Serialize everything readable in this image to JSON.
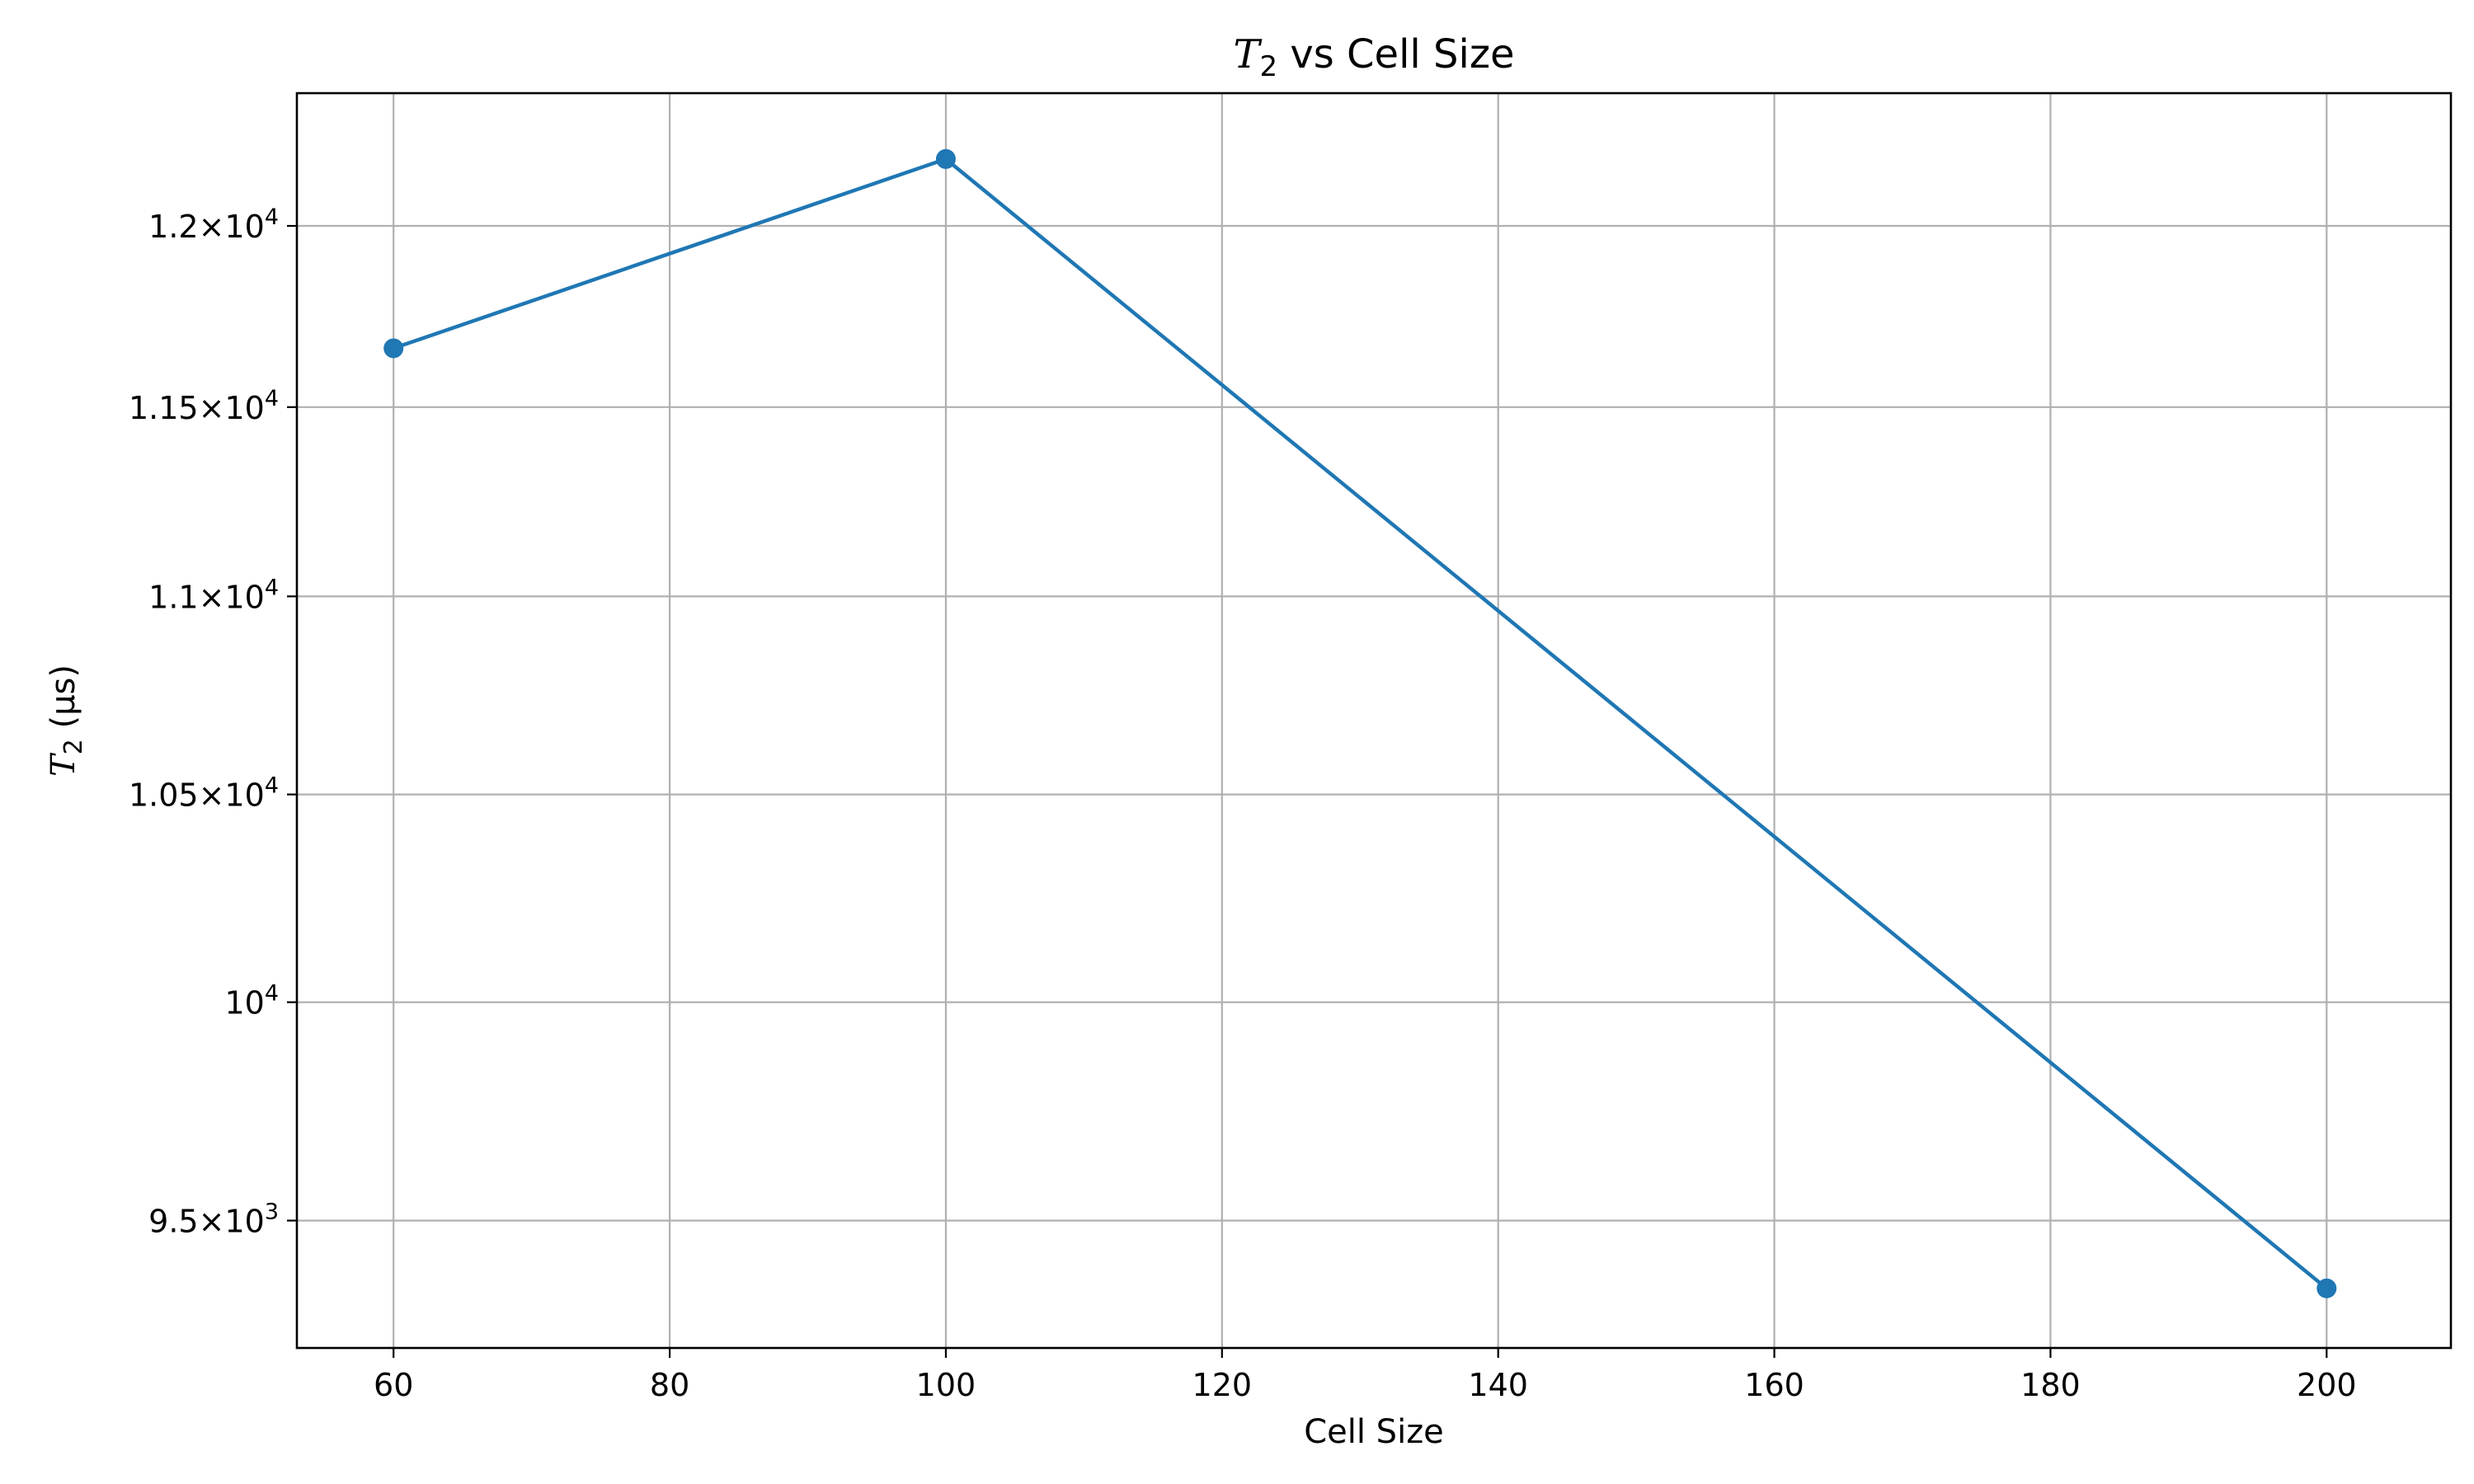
{
  "chart_data": {
    "type": "line",
    "title": {
      "var": "T",
      "sub": "2",
      "rest": " vs Cell Size"
    },
    "xlabel": "Cell Size",
    "ylabel": {
      "var": "T",
      "sub": "2",
      "rest": " (μs)"
    },
    "xlim": [
      53,
      209
    ],
    "ylim": [
      9220,
      12380
    ],
    "y_scale": "log",
    "grid": true,
    "x_ticks": [
      60,
      80,
      100,
      120,
      140,
      160,
      180,
      200
    ],
    "x_tick_labels": [
      "60",
      "80",
      "100",
      "120",
      "140",
      "160",
      "180",
      "200"
    ],
    "y_ticks": [
      {
        "value": 9500,
        "mantissa": "9.5",
        "exp": "3"
      },
      {
        "value": 10000,
        "mantissa": "",
        "exp": "4"
      },
      {
        "value": 10500,
        "mantissa": "1.05",
        "exp": "4"
      },
      {
        "value": 11000,
        "mantissa": "1.1",
        "exp": "4"
      },
      {
        "value": 11500,
        "mantissa": "1.15",
        "exp": "4"
      },
      {
        "value": 12000,
        "mantissa": "1.2",
        "exp": "4"
      }
    ],
    "series": [
      {
        "x": [
          60,
          100,
          200
        ],
        "y": [
          11660,
          12190,
          9350
        ],
        "color": "#1f77b4",
        "marker": "circle"
      }
    ]
  }
}
